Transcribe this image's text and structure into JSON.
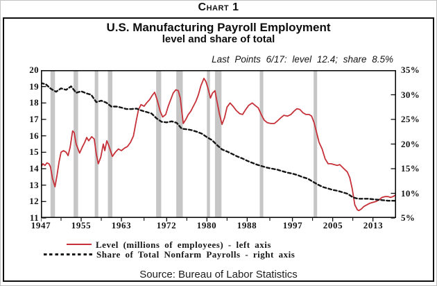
{
  "chart_label": "Chart 1",
  "source": "Source: Bureau of Labor Statistics",
  "chart_data": {
    "type": "line",
    "title": "U.S. Manufacturing Payroll Employment",
    "subtitle": "level and share of total",
    "annotation": "Last Points 6/17:  level 12.4;  share 8.5%",
    "grid": false,
    "legend_position": "bottom-left",
    "recession_band_color": "#c6c6c6",
    "frame_color": "#0d0d0d",
    "x_axis": {
      "range": [
        1947,
        2017.6
      ],
      "tick_years": [
        1947,
        1955,
        1963,
        1972,
        1980,
        1988,
        1997,
        2005,
        2013
      ],
      "minor_tick_years": [
        1951,
        1959,
        1967.5,
        1976,
        1984,
        1992.5,
        2001,
        2009
      ]
    },
    "left_axis": {
      "range": [
        11,
        20
      ],
      "ticks": [
        20,
        19,
        18,
        17,
        16,
        15,
        14,
        13,
        12,
        11
      ],
      "units": "millions of employees"
    },
    "right_axis": {
      "range": [
        5,
        35
      ],
      "ticks": [
        35,
        30,
        25,
        20,
        15,
        10,
        5
      ],
      "suffix": "%"
    },
    "recession_bands": [
      [
        1948.9,
        1949.8
      ],
      [
        1953.5,
        1954.4
      ],
      [
        1957.7,
        1958.4
      ],
      [
        1960.3,
        1961.2
      ],
      [
        1969.9,
        1970.9
      ],
      [
        1973.9,
        1975.2
      ],
      [
        1980.0,
        1980.6
      ],
      [
        1981.6,
        1982.9
      ],
      [
        1990.5,
        1991.2
      ],
      [
        2001.2,
        2001.9
      ]
    ],
    "series": [
      {
        "name": "Level (millions of employees) - left axis",
        "axis": "left",
        "line": "solid",
        "color": "#c63038",
        "last_point": {
          "date": "6/17",
          "value": 12.4
        },
        "points": [
          [
            1947.0,
            14.1
          ],
          [
            1947.4,
            14.3
          ],
          [
            1947.8,
            14.2
          ],
          [
            1948.2,
            14.35
          ],
          [
            1948.6,
            14.3
          ],
          [
            1948.9,
            14.1
          ],
          [
            1949.3,
            13.4
          ],
          [
            1949.8,
            12.9
          ],
          [
            1950.2,
            13.6
          ],
          [
            1950.6,
            14.4
          ],
          [
            1951.0,
            15.0
          ],
          [
            1951.5,
            15.1
          ],
          [
            1952.0,
            15.0
          ],
          [
            1952.4,
            14.8
          ],
          [
            1952.8,
            15.3
          ],
          [
            1953.3,
            16.3
          ],
          [
            1953.6,
            16.2
          ],
          [
            1954.0,
            15.5
          ],
          [
            1954.7,
            14.95
          ],
          [
            1955.2,
            15.3
          ],
          [
            1955.7,
            15.6
          ],
          [
            1956.1,
            15.9
          ],
          [
            1956.5,
            15.7
          ],
          [
            1957.1,
            15.95
          ],
          [
            1957.6,
            15.8
          ],
          [
            1958.0,
            14.9
          ],
          [
            1958.4,
            14.3
          ],
          [
            1958.9,
            14.7
          ],
          [
            1959.4,
            15.5
          ],
          [
            1959.7,
            15.1
          ],
          [
            1960.1,
            15.7
          ],
          [
            1960.5,
            15.4
          ],
          [
            1961.2,
            14.75
          ],
          [
            1961.8,
            15.0
          ],
          [
            1962.4,
            15.2
          ],
          [
            1963.0,
            15.1
          ],
          [
            1963.6,
            15.25
          ],
          [
            1964.2,
            15.35
          ],
          [
            1964.8,
            15.6
          ],
          [
            1965.4,
            16.0
          ],
          [
            1966.0,
            17.0
          ],
          [
            1966.4,
            17.6
          ],
          [
            1966.9,
            17.9
          ],
          [
            1967.5,
            17.8
          ],
          [
            1968.0,
            18.0
          ],
          [
            1968.6,
            18.2
          ],
          [
            1969.1,
            18.45
          ],
          [
            1969.6,
            18.65
          ],
          [
            1970.1,
            18.2
          ],
          [
            1970.7,
            17.5
          ],
          [
            1971.2,
            17.15
          ],
          [
            1971.8,
            17.3
          ],
          [
            1972.3,
            17.8
          ],
          [
            1972.8,
            18.2
          ],
          [
            1973.3,
            18.6
          ],
          [
            1973.8,
            18.8
          ],
          [
            1974.3,
            18.75
          ],
          [
            1974.7,
            18.3
          ],
          [
            1975.3,
            16.75
          ],
          [
            1975.8,
            17.0
          ],
          [
            1976.3,
            17.3
          ],
          [
            1976.8,
            17.5
          ],
          [
            1977.3,
            17.8
          ],
          [
            1977.8,
            18.1
          ],
          [
            1978.3,
            18.5
          ],
          [
            1978.8,
            19.05
          ],
          [
            1979.4,
            19.5
          ],
          [
            1979.8,
            19.3
          ],
          [
            1980.2,
            18.9
          ],
          [
            1980.7,
            18.3
          ],
          [
            1981.1,
            18.6
          ],
          [
            1981.6,
            18.75
          ],
          [
            1982.0,
            18.1
          ],
          [
            1982.5,
            17.3
          ],
          [
            1983.0,
            16.7
          ],
          [
            1983.5,
            17.1
          ],
          [
            1984.0,
            17.75
          ],
          [
            1984.6,
            18.0
          ],
          [
            1985.2,
            17.8
          ],
          [
            1985.8,
            17.55
          ],
          [
            1986.5,
            17.35
          ],
          [
            1987.1,
            17.3
          ],
          [
            1987.7,
            17.6
          ],
          [
            1988.3,
            17.85
          ],
          [
            1989.0,
            18.0
          ],
          [
            1989.6,
            17.85
          ],
          [
            1990.2,
            17.7
          ],
          [
            1990.8,
            17.3
          ],
          [
            1991.4,
            16.95
          ],
          [
            1992.0,
            16.8
          ],
          [
            1992.7,
            16.75
          ],
          [
            1993.4,
            16.75
          ],
          [
            1994.0,
            16.9
          ],
          [
            1994.7,
            17.1
          ],
          [
            1995.3,
            17.25
          ],
          [
            1996.0,
            17.2
          ],
          [
            1996.7,
            17.3
          ],
          [
            1997.3,
            17.5
          ],
          [
            1997.9,
            17.65
          ],
          [
            1998.5,
            17.6
          ],
          [
            1999.1,
            17.4
          ],
          [
            1999.7,
            17.3
          ],
          [
            2000.3,
            17.3
          ],
          [
            2000.8,
            17.2
          ],
          [
            2001.3,
            16.8
          ],
          [
            2001.8,
            16.2
          ],
          [
            2002.3,
            15.6
          ],
          [
            2002.9,
            15.2
          ],
          [
            2003.5,
            14.6
          ],
          [
            2004.1,
            14.3
          ],
          [
            2004.7,
            14.3
          ],
          [
            2005.3,
            14.25
          ],
          [
            2005.9,
            14.2
          ],
          [
            2006.4,
            14.25
          ],
          [
            2006.9,
            14.1
          ],
          [
            2007.4,
            13.95
          ],
          [
            2007.9,
            13.8
          ],
          [
            2008.4,
            13.45
          ],
          [
            2008.9,
            12.75
          ],
          [
            2009.4,
            11.8
          ],
          [
            2009.9,
            11.5
          ],
          [
            2010.2,
            11.45
          ],
          [
            2010.7,
            11.55
          ],
          [
            2011.2,
            11.7
          ],
          [
            2011.8,
            11.8
          ],
          [
            2012.4,
            11.9
          ],
          [
            2013.0,
            11.95
          ],
          [
            2013.6,
            12.0
          ],
          [
            2014.2,
            12.1
          ],
          [
            2014.8,
            12.25
          ],
          [
            2015.4,
            12.3
          ],
          [
            2016.0,
            12.3
          ],
          [
            2016.5,
            12.25
          ],
          [
            2017.0,
            12.3
          ],
          [
            2017.5,
            12.4
          ]
        ]
      },
      {
        "name": "Share of Total Nonfarm Payrolls - right axis",
        "axis": "right",
        "line": "dashed",
        "color": "#151515",
        "last_point": {
          "date": "6/17",
          "value": 8.5
        },
        "points": [
          [
            1947,
            32.4
          ],
          [
            1948,
            32.1
          ],
          [
            1949,
            31.2
          ],
          [
            1950,
            30.6
          ],
          [
            1951,
            31.3
          ],
          [
            1952,
            31.0
          ],
          [
            1953,
            31.7
          ],
          [
            1954,
            30.4
          ],
          [
            1955,
            30.7
          ],
          [
            1956,
            30.3
          ],
          [
            1957,
            30.0
          ],
          [
            1958,
            28.5
          ],
          [
            1959,
            28.8
          ],
          [
            1960,
            28.4
          ],
          [
            1961,
            27.6
          ],
          [
            1962,
            27.6
          ],
          [
            1963,
            27.4
          ],
          [
            1964,
            27.1
          ],
          [
            1965,
            27.1
          ],
          [
            1966,
            27.2
          ],
          [
            1967,
            26.8
          ],
          [
            1968,
            26.5
          ],
          [
            1969,
            26.2
          ],
          [
            1970,
            25.2
          ],
          [
            1971,
            24.5
          ],
          [
            1972,
            24.4
          ],
          [
            1973,
            24.6
          ],
          [
            1974,
            24.3
          ],
          [
            1975,
            23.1
          ],
          [
            1976,
            23.0
          ],
          [
            1977,
            22.8
          ],
          [
            1978,
            22.5
          ],
          [
            1979,
            22.1
          ],
          [
            1980,
            21.4
          ],
          [
            1981,
            20.8
          ],
          [
            1982,
            19.8
          ],
          [
            1983,
            18.9
          ],
          [
            1984,
            18.5
          ],
          [
            1985,
            18.0
          ],
          [
            1986,
            17.5
          ],
          [
            1987,
            17.1
          ],
          [
            1988,
            16.6
          ],
          [
            1989,
            16.2
          ],
          [
            1990,
            15.8
          ],
          [
            1991,
            15.5
          ],
          [
            1992,
            15.2
          ],
          [
            1993,
            15.0
          ],
          [
            1994,
            14.8
          ],
          [
            1995,
            14.5
          ],
          [
            1996,
            14.2
          ],
          [
            1997,
            14.0
          ],
          [
            1998,
            13.7
          ],
          [
            1999,
            13.3
          ],
          [
            2000,
            13.0
          ],
          [
            2001,
            12.4
          ],
          [
            2002,
            11.8
          ],
          [
            2003,
            11.3
          ],
          [
            2004,
            11.0
          ],
          [
            2005,
            10.7
          ],
          [
            2006,
            10.5
          ],
          [
            2007,
            10.2
          ],
          [
            2008,
            9.9
          ],
          [
            2009,
            9.2
          ],
          [
            2010,
            8.9
          ],
          [
            2011,
            8.9
          ],
          [
            2012,
            8.9
          ],
          [
            2013,
            8.8
          ],
          [
            2014,
            8.7
          ],
          [
            2015,
            8.6
          ],
          [
            2016,
            8.5
          ],
          [
            2017,
            8.5
          ],
          [
            2017.5,
            8.5
          ]
        ]
      }
    ]
  }
}
